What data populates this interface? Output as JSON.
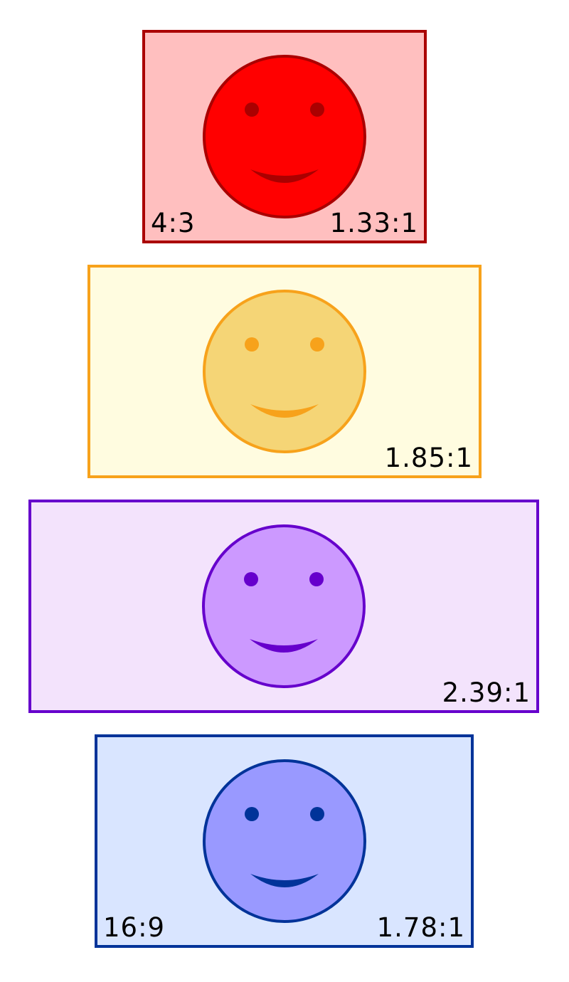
{
  "frames": [
    {
      "ratio_name": "4:3",
      "ratio_value": "1.33:1",
      "border_color": "#aa0000",
      "background_color": "#ffbfbf",
      "face_fill": "#ff0000",
      "feature_color": "#aa0000"
    },
    {
      "ratio_name": "",
      "ratio_value": "1.85:1",
      "border_color": "#f7a21b",
      "background_color": "#fffce0",
      "face_fill": "#f5d576",
      "feature_color": "#f7a21b"
    },
    {
      "ratio_name": "",
      "ratio_value": "2.39:1",
      "border_color": "#6600cc",
      "background_color": "#f3e3fc",
      "face_fill": "#cc99ff",
      "feature_color": "#6600cc"
    },
    {
      "ratio_name": "16:9",
      "ratio_value": "1.78:1",
      "border_color": "#003399",
      "background_color": "#d9e5ff",
      "face_fill": "#9999ff",
      "feature_color": "#003399"
    }
  ]
}
